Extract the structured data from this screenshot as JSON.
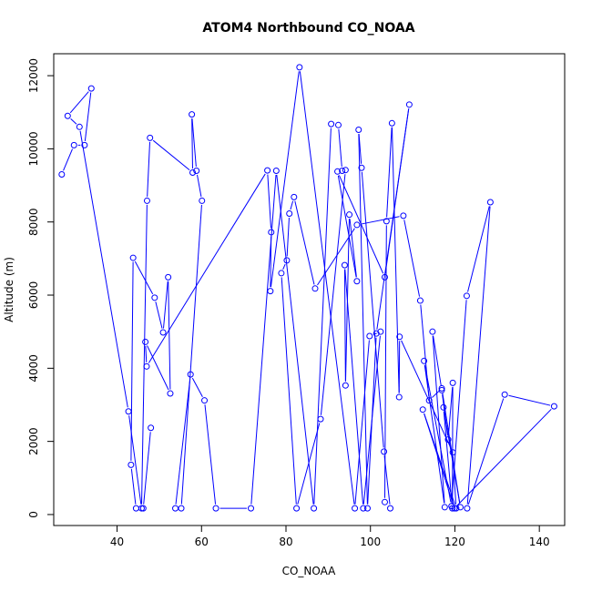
{
  "chart_data": {
    "type": "line",
    "title": "ATOM4 Northbound CO_NOAA",
    "xlabel": "CO_NOAA",
    "ylabel": "Altitude (m)",
    "xlim": [
      25,
      146
    ],
    "ylim": [
      -300,
      12600
    ],
    "xticks": [
      40,
      60,
      80,
      100,
      120,
      140
    ],
    "yticks": [
      0,
      2000,
      4000,
      6000,
      8000,
      10000,
      12000
    ],
    "series": [
      {
        "color": "#0000ff",
        "marker": "open-circle",
        "x": [
          26.9,
          29.8,
          32.3,
          33.9,
          28.3,
          31.1,
          42.7,
          45.8,
          47.1,
          47.8,
          57.9,
          57.7,
          58.8,
          60.1,
          55.2,
          53.8,
          57.4,
          60.7,
          63.4,
          71.7,
          77.7,
          86.6,
          90.7,
          92.4,
          93.3,
          94.1,
          88.2,
          82.5,
          78.9,
          80.2,
          80.8,
          81.9,
          86.9,
          96.8,
          107.8,
          111.8,
          113.9,
          116.9,
          121.3,
          117.3,
          119.4,
          119.5,
          118.4,
          116.9,
          114.7,
          117.6,
          112.7,
          119.2,
          122.8,
          128.4,
          122.9,
          131.8,
          143.5,
          119.9,
          112.4,
          120.3,
          119.5,
          106.9,
          106.8,
          105.1,
          103.8,
          103.4,
          104.7,
          103.2,
          97.9,
          97.2,
          99.3,
          101.4,
          109.2,
          103.4,
          92.2,
          96.8,
          95.0,
          94.1,
          93.9,
          98.3,
          102.4,
          99.8,
          96.3,
          83.2,
          76.3,
          76.5,
          75.6,
          47.0,
          46.7,
          52.6,
          52.1,
          50.9,
          48.9,
          43.8,
          43.3,
          44.5,
          46.2,
          48.0
        ],
        "y": [
          9300,
          10100,
          10100,
          11650,
          10900,
          10600,
          2820,
          170,
          8580,
          10300,
          9350,
          10940,
          9400,
          8580,
          170,
          170,
          3830,
          3120,
          170,
          170,
          9400,
          170,
          10680,
          10650,
          9400,
          9420,
          2610,
          170,
          6600,
          6950,
          8230,
          8680,
          6180,
          7920,
          8170,
          5850,
          3120,
          3450,
          200,
          2930,
          170,
          3600,
          2050,
          3400,
          5000,
          200,
          4200,
          230,
          5980,
          8540,
          170,
          3280,
          2960,
          170,
          2870,
          170,
          1700,
          4860,
          3210,
          10700,
          8020,
          340,
          170,
          1720,
          9480,
          10520,
          170,
          4950,
          11210,
          6490,
          9380,
          6380,
          8200,
          3530,
          6820,
          170,
          5000,
          4880,
          170,
          12230,
          6110,
          7720,
          9410,
          4050,
          4720,
          3310,
          6490,
          4980,
          5930,
          7020,
          1360,
          170,
          170,
          2370
        ]
      }
    ]
  }
}
